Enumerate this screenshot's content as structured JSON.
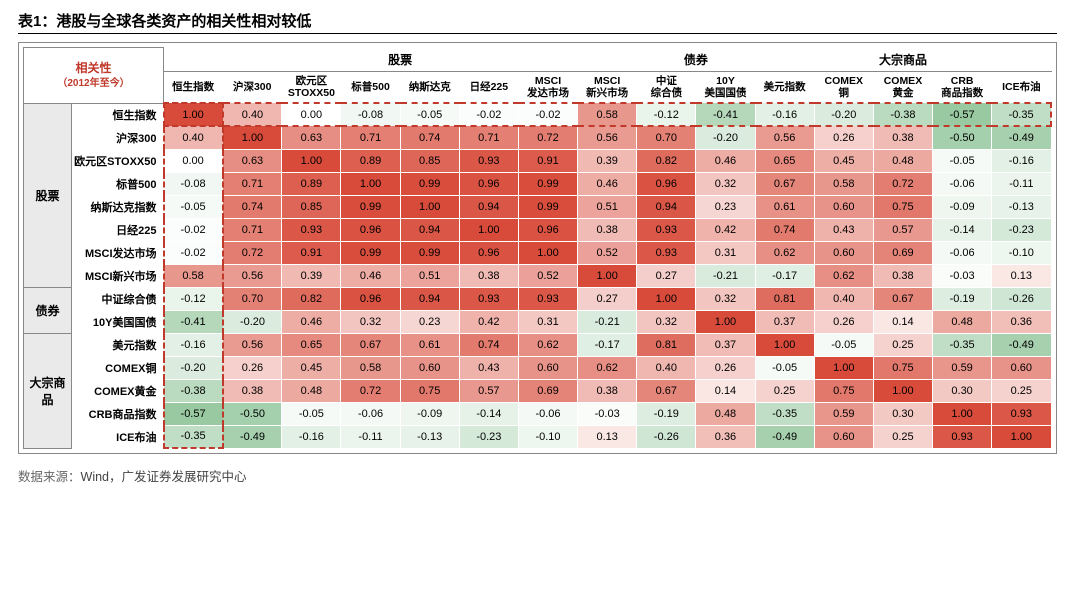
{
  "title": "表1：港股与全球各类资产的相关性相对较低",
  "corner_label": "相关性",
  "corner_sub": "（2012年至今）",
  "source_label": "数据来源：",
  "source_text": "Wind，广发证券发展研究中心",
  "groups": [
    {
      "name": "股票",
      "cols": [
        "恒生指数",
        "沪深300",
        "欧元区\nSTOXX50",
        "标普500",
        "纳斯达克",
        "日经225",
        "MSCI\n发达市场",
        "MSCI\n新兴市场"
      ]
    },
    {
      "name": "债券",
      "cols": [
        "中证\n综合债",
        "10Y\n美国国债"
      ]
    },
    {
      "name": "大宗商品",
      "cols": [
        "美元指数",
        "COMEX\n铜",
        "COMEX\n黄金",
        "CRB\n商品指数",
        "ICE布油"
      ]
    }
  ],
  "row_groups": [
    {
      "name": "股票",
      "rows": [
        "恒生指数",
        "沪深300",
        "欧元区STOXX50",
        "标普500",
        "纳斯达克指数",
        "日经225",
        "MSCI发达市场",
        "MSCI新兴市场"
      ]
    },
    {
      "name": "债券",
      "rows": [
        "中证综合债",
        "10Y美国国债"
      ]
    },
    {
      "name": "大宗商品",
      "rows": [
        "美元指数",
        "COMEX铜",
        "COMEX黄金",
        "CRB商品指数",
        "ICE布油"
      ]
    }
  ],
  "matrix": [
    [
      1.0,
      0.4,
      0.0,
      -0.08,
      -0.05,
      -0.02,
      -0.02,
      0.58,
      -0.12,
      -0.41,
      -0.16,
      -0.2,
      -0.38,
      -0.57,
      -0.35
    ],
    [
      0.4,
      1.0,
      0.63,
      0.71,
      0.74,
      0.71,
      0.72,
      0.56,
      0.7,
      -0.2,
      0.56,
      0.26,
      0.38,
      -0.5,
      -0.49
    ],
    [
      0.0,
      0.63,
      1.0,
      0.89,
      0.85,
      0.93,
      0.91,
      0.39,
      0.82,
      0.46,
      0.65,
      0.45,
      0.48,
      -0.05,
      -0.16
    ],
    [
      -0.08,
      0.71,
      0.89,
      1.0,
      0.99,
      0.96,
      0.99,
      0.46,
      0.96,
      0.32,
      0.67,
      0.58,
      0.72,
      -0.06,
      -0.11
    ],
    [
      -0.05,
      0.74,
      0.85,
      0.99,
      1.0,
      0.94,
      0.99,
      0.51,
      0.94,
      0.23,
      0.61,
      0.6,
      0.75,
      -0.09,
      -0.13
    ],
    [
      -0.02,
      0.71,
      0.93,
      0.96,
      0.94,
      1.0,
      0.96,
      0.38,
      0.93,
      0.42,
      0.74,
      0.43,
      0.57,
      -0.14,
      -0.23
    ],
    [
      -0.02,
      0.72,
      0.91,
      0.99,
      0.99,
      0.96,
      1.0,
      0.52,
      0.93,
      0.31,
      0.62,
      0.6,
      0.69,
      -0.06,
      -0.1
    ],
    [
      0.58,
      0.56,
      0.39,
      0.46,
      0.51,
      0.38,
      0.52,
      1.0,
      0.27,
      -0.21,
      -0.17,
      0.62,
      0.38,
      -0.03,
      0.13
    ],
    [
      -0.12,
      0.7,
      0.82,
      0.96,
      0.94,
      0.93,
      0.93,
      0.27,
      1.0,
      0.32,
      0.81,
      0.4,
      0.67,
      -0.19,
      -0.26
    ],
    [
      -0.41,
      -0.2,
      0.46,
      0.32,
      0.23,
      0.42,
      0.31,
      -0.21,
      0.32,
      1.0,
      0.37,
      0.26,
      0.14,
      0.48,
      0.36
    ],
    [
      -0.16,
      0.56,
      0.65,
      0.67,
      0.61,
      0.74,
      0.62,
      -0.17,
      0.81,
      0.37,
      1.0,
      -0.05,
      0.25,
      -0.35,
      -0.49
    ],
    [
      -0.2,
      0.26,
      0.45,
      0.58,
      0.6,
      0.43,
      0.6,
      0.62,
      0.4,
      0.26,
      -0.05,
      1.0,
      0.75,
      0.59,
      0.6
    ],
    [
      -0.38,
      0.38,
      0.48,
      0.72,
      0.75,
      0.57,
      0.69,
      0.38,
      0.67,
      0.14,
      0.25,
      0.75,
      1.0,
      0.3,
      0.25
    ],
    [
      -0.57,
      -0.5,
      -0.05,
      -0.06,
      -0.09,
      -0.14,
      -0.06,
      -0.03,
      -0.19,
      0.48,
      -0.35,
      0.59,
      0.3,
      1.0,
      0.93
    ],
    [
      -0.35,
      -0.49,
      -0.16,
      -0.11,
      -0.13,
      -0.23,
      -0.1,
      0.13,
      -0.26,
      0.36,
      -0.49,
      0.6,
      0.25,
      0.93,
      1.0
    ]
  ],
  "colors": {
    "pos_max": "#d84b3a",
    "pos_min": "#ffffff",
    "neg_max": "#4aa05a",
    "neg_min": "#ffffff"
  }
}
